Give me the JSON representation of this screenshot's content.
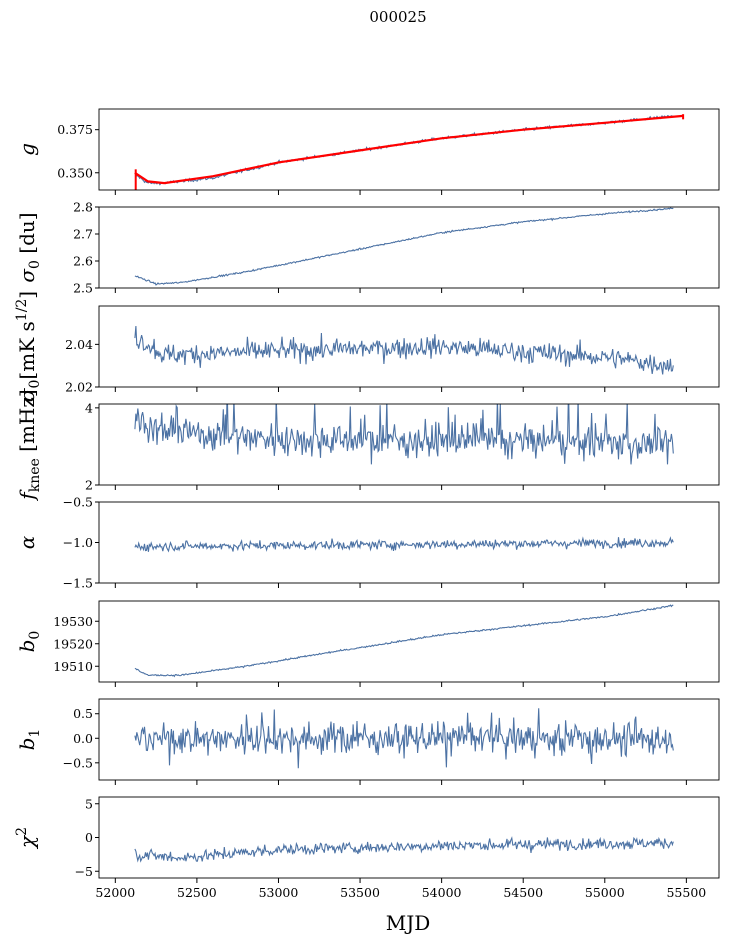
{
  "figure_title": "000025",
  "xlabel": "MJD",
  "series_color": "#4c72a4",
  "gain_fit_color": "#ff0000",
  "chart_data": {
    "type": "line",
    "title": "000025",
    "xlabel": "MJD",
    "xlim": [
      51900,
      55700
    ],
    "xticks": [
      52000,
      52500,
      53000,
      53500,
      54000,
      54500,
      55000,
      55500
    ],
    "xtick_labels": [
      "52000",
      "52500",
      "53000",
      "53500",
      "54000",
      "54500",
      "55000",
      "55500"
    ],
    "x_start": 52120,
    "x_end": 55420,
    "panels": [
      {
        "id": "g",
        "ylabel": "g",
        "ylim": [
          0.34,
          0.387
        ],
        "yticks": [
          0.35,
          0.375
        ],
        "ytick_labels": [
          "0.350",
          "0.375"
        ],
        "trend": [
          [
            52120,
            0.349
          ],
          [
            52200,
            0.344
          ],
          [
            52300,
            0.344
          ],
          [
            52600,
            0.347
          ],
          [
            53000,
            0.356
          ],
          [
            53500,
            0.363
          ],
          [
            54000,
            0.37
          ],
          [
            54500,
            0.375
          ],
          [
            55000,
            0.379
          ],
          [
            55420,
            0.383
          ]
        ],
        "noise": 0.0006,
        "fit": [
          [
            52120,
            0.35
          ],
          [
            52200,
            0.345
          ],
          [
            52300,
            0.344
          ],
          [
            52600,
            0.348
          ],
          [
            53000,
            0.356
          ],
          [
            53500,
            0.363
          ],
          [
            54000,
            0.37
          ],
          [
            54500,
            0.375
          ],
          [
            55000,
            0.379
          ],
          [
            55480,
            0.383
          ]
        ]
      },
      {
        "id": "sigma0_du",
        "ylabel": "σ0 [du]",
        "ylim": [
          2.5,
          2.8
        ],
        "yticks": [
          2.5,
          2.6,
          2.7,
          2.8
        ],
        "ytick_labels": [
          "2.5",
          "2.6",
          "2.7",
          "2.8"
        ],
        "trend": [
          [
            52120,
            2.545
          ],
          [
            52250,
            2.515
          ],
          [
            52400,
            2.52
          ],
          [
            52800,
            2.56
          ],
          [
            53300,
            2.62
          ],
          [
            54000,
            2.705
          ],
          [
            54500,
            2.745
          ],
          [
            55000,
            2.775
          ],
          [
            55420,
            2.795
          ]
        ],
        "noise": 0.002
      },
      {
        "id": "sigma0_mK",
        "ylabel": "σ0[mK s^1/2]",
        "ylim": [
          2.02,
          2.058
        ],
        "yticks": [
          2.02,
          2.04
        ],
        "ytick_labels": [
          "2.02",
          "2.04"
        ],
        "trend": [
          [
            52120,
            2.044
          ],
          [
            52300,
            2.035
          ],
          [
            53000,
            2.037
          ],
          [
            54000,
            2.039
          ],
          [
            55000,
            2.034
          ],
          [
            55420,
            2.03
          ]
        ],
        "noise": 0.0035
      },
      {
        "id": "fknee",
        "ylabel": "f_knee [mHz]",
        "ylim": [
          2,
          4.1
        ],
        "yticks": [
          2,
          4
        ],
        "ytick_labels": [
          "2",
          "4"
        ],
        "trend": [
          [
            52120,
            3.7
          ],
          [
            52300,
            3.4
          ],
          [
            53000,
            3.2
          ],
          [
            54000,
            3.15
          ],
          [
            55000,
            3.1
          ],
          [
            55420,
            3.05
          ]
        ],
        "noise": 0.3
      },
      {
        "id": "alpha",
        "ylabel": "α",
        "ylim": [
          -1.5,
          -0.5
        ],
        "yticks": [
          -1.5,
          -1.0,
          -0.5
        ],
        "ytick_labels": [
          "−1.5",
          "−1.0",
          "−0.5"
        ],
        "trend": [
          [
            52120,
            -1.05
          ],
          [
            55420,
            -1.0
          ]
        ],
        "noise": 0.04
      },
      {
        "id": "b0",
        "ylabel": "b0",
        "ylim": [
          19503,
          19539
        ],
        "yticks": [
          19510,
          19520,
          19530
        ],
        "ytick_labels": [
          "19510",
          "19520",
          "19530"
        ],
        "trend": [
          [
            52120,
            19509
          ],
          [
            52200,
            19506
          ],
          [
            52400,
            19506
          ],
          [
            52800,
            19510
          ],
          [
            53300,
            19516
          ],
          [
            54000,
            19524
          ],
          [
            54500,
            19528
          ],
          [
            55000,
            19532
          ],
          [
            55420,
            19537
          ]
        ],
        "noise": 0.25
      },
      {
        "id": "b1",
        "ylabel": "b1",
        "ylim": [
          -0.85,
          0.8
        ],
        "yticks": [
          -0.5,
          0.0,
          0.5
        ],
        "ytick_labels": [
          "−0.5",
          "0.0",
          "0.5"
        ],
        "trend": [
          [
            52120,
            0.0
          ],
          [
            55420,
            0.0
          ]
        ],
        "noise": 0.22
      },
      {
        "id": "chi2",
        "ylabel": "χ2",
        "ylim": [
          -6,
          6
        ],
        "yticks": [
          -5,
          0,
          5
        ],
        "ytick_labels": [
          "−5",
          "0",
          "5"
        ],
        "trend": [
          [
            52120,
            -2.5
          ],
          [
            52400,
            -3.0
          ],
          [
            53000,
            -1.8
          ],
          [
            54000,
            -1.2
          ],
          [
            55000,
            -0.9
          ],
          [
            55420,
            -0.8
          ]
        ],
        "noise": 0.6
      }
    ]
  }
}
